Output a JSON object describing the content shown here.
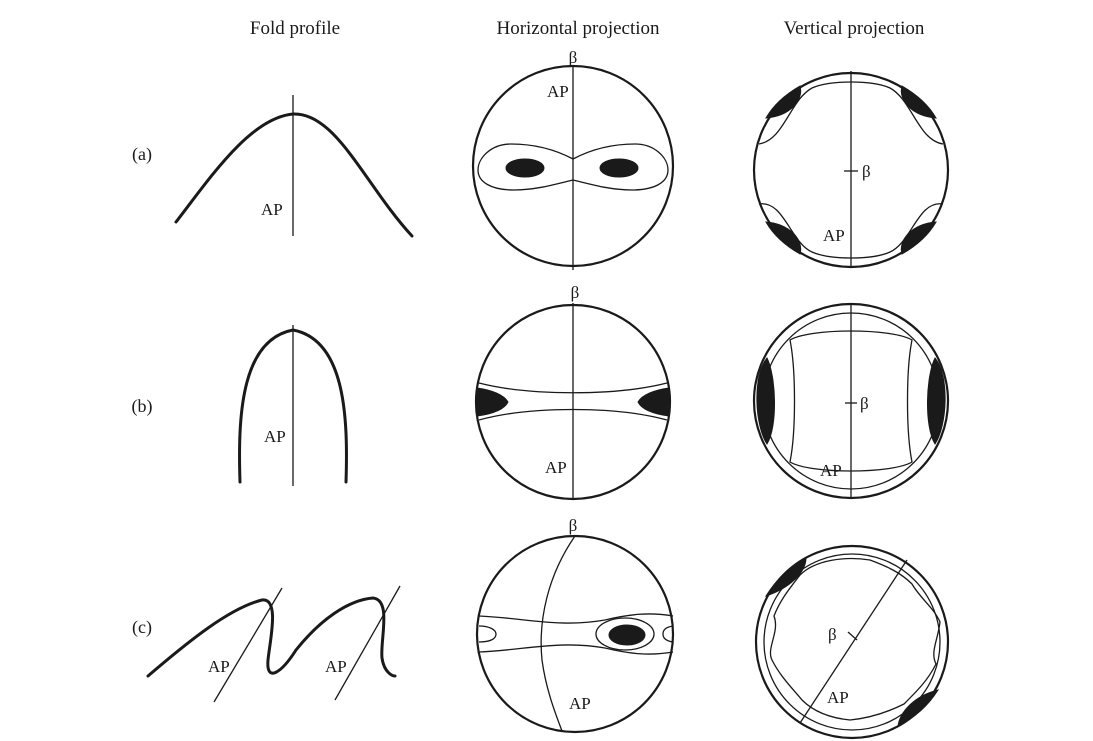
{
  "headers": {
    "fold_profile": "Fold profile",
    "horizontal_projection": "Horizontal projection",
    "vertical_projection": "Vertical projection"
  },
  "rows": [
    {
      "label": "(a)",
      "profile_ap": "AP",
      "horizontal_beta": "β",
      "horizontal_ap": "AP",
      "vertical_beta": "β",
      "vertical_ap": "AP"
    },
    {
      "label": "(b)",
      "profile_ap": "AP",
      "horizontal_beta": "β",
      "horizontal_ap": "AP",
      "vertical_beta": "β",
      "vertical_ap": "AP"
    },
    {
      "label": "(c)",
      "profile_ap_1": "AP",
      "profile_ap_2": "AP",
      "horizontal_beta": "β",
      "horizontal_ap": "AP",
      "vertical_beta": "β",
      "vertical_ap": "AP"
    }
  ]
}
